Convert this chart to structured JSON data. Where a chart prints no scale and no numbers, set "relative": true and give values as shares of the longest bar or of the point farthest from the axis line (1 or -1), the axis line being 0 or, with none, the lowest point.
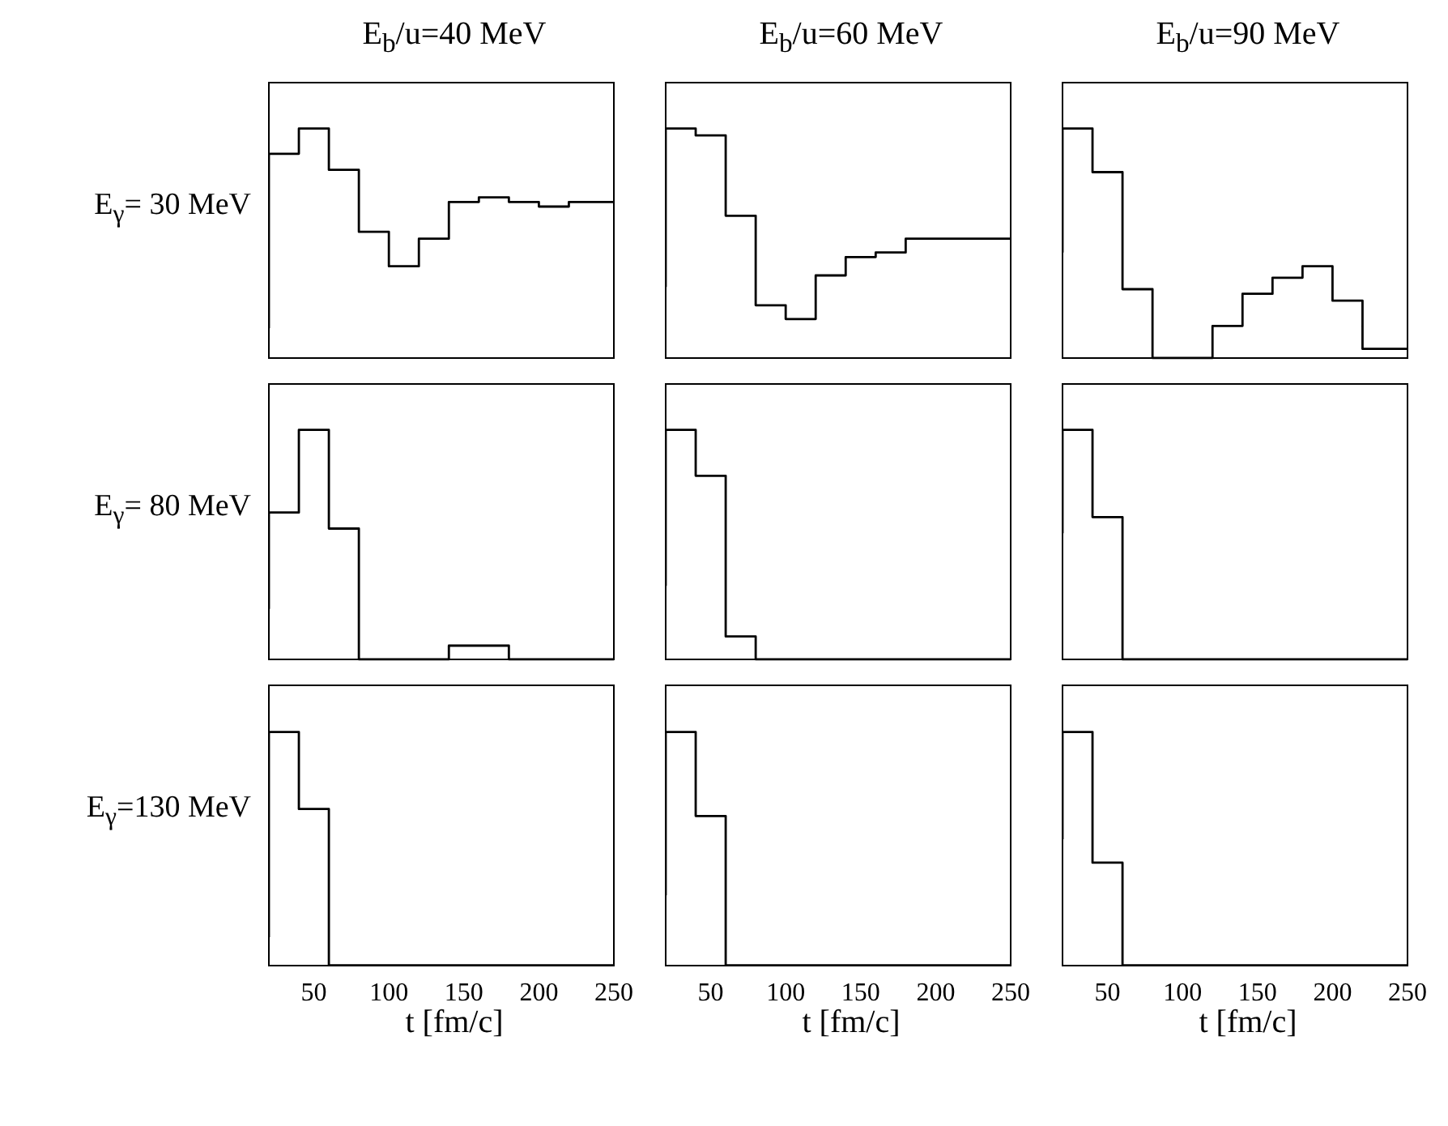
{
  "chart_data": [
    {
      "type": "step",
      "title": "E$_{b}$/u=40 MeV",
      "ylabel": "E$_{γ}$= 30 MeV",
      "relative": true,
      "color": "#000000",
      "tick_labels": false,
      "xlim": [
        20,
        250
      ],
      "xticks": [
        50,
        100,
        150,
        200,
        250
      ],
      "x": [
        20,
        40,
        60,
        80,
        100,
        120,
        140,
        160,
        180,
        200,
        220,
        240,
        250
      ],
      "values": [
        0.13,
        0.89,
        1,
        0.82,
        0.55,
        0.4,
        0.52,
        0.68,
        0.7,
        0.68,
        0.66,
        0.68,
        0.68
      ]
    },
    {
      "type": "step",
      "title": "E$_{b}$/u=60 MeV",
      "relative": true,
      "color": "#000000",
      "tick_labels": false,
      "xlim": [
        20,
        250
      ],
      "xticks": [
        50,
        100,
        150,
        200,
        250
      ],
      "x": [
        20,
        40,
        60,
        80,
        100,
        120,
        140,
        160,
        180,
        200,
        220,
        240,
        250
      ],
      "values": [
        0.31,
        1,
        0.97,
        0.62,
        0.23,
        0.17,
        0.36,
        0.44,
        0.46,
        0.52,
        0.52,
        0.52,
        0.52
      ]
    },
    {
      "type": "step",
      "title": "E$_{b}$/u=90 MeV",
      "relative": true,
      "color": "#000000",
      "tick_labels": false,
      "xlim": [
        20,
        250
      ],
      "xticks": [
        50,
        100,
        150,
        200,
        250
      ],
      "x": [
        20,
        40,
        60,
        80,
        100,
        120,
        140,
        160,
        180,
        200,
        220,
        240,
        250
      ],
      "values": [
        0.46,
        1,
        0.81,
        0.3,
        0,
        0,
        0.14,
        0.28,
        0.35,
        0.4,
        0.25,
        0.04,
        0.04
      ]
    },
    {
      "type": "step",
      "ylabel": "E$_{γ}$= 80 MeV",
      "relative": true,
      "color": "#000000",
      "tick_labels": false,
      "xlim": [
        20,
        250
      ],
      "xticks": [
        50,
        100,
        150,
        200,
        250
      ],
      "x": [
        20,
        40,
        60,
        80,
        100,
        120,
        140,
        160,
        180,
        200,
        220,
        240,
        250
      ],
      "values": [
        0.22,
        0.64,
        1,
        0.57,
        0,
        0,
        0,
        0.06,
        0.06,
        0,
        0,
        0,
        0
      ]
    },
    {
      "type": "step",
      "relative": true,
      "color": "#000000",
      "tick_labels": false,
      "xlim": [
        20,
        250
      ],
      "xticks": [
        50,
        100,
        150,
        200,
        250
      ],
      "x": [
        20,
        40,
        60,
        80,
        100,
        120,
        140,
        160,
        180,
        200,
        220,
        240,
        250
      ],
      "values": [
        0.32,
        1,
        0.8,
        0.1,
        0,
        0,
        0,
        0,
        0,
        0,
        0,
        0,
        0
      ]
    },
    {
      "type": "step",
      "relative": true,
      "color": "#000000",
      "tick_labels": false,
      "xlim": [
        20,
        250
      ],
      "xticks": [
        50,
        100,
        150,
        200,
        250
      ],
      "x": [
        20,
        40,
        60,
        80,
        100,
        120,
        140,
        160,
        180,
        200,
        220,
        240,
        250
      ],
      "values": [
        0.55,
        1,
        0.62,
        0,
        0,
        0,
        0,
        0,
        0,
        0,
        0,
        0,
        0
      ]
    },
    {
      "type": "step",
      "ylabel": "E$_{γ}$=130 MeV",
      "xlabel": "t [fm/c]",
      "relative": true,
      "color": "#000000",
      "tick_labels": "x",
      "xlim": [
        20,
        250
      ],
      "xticks": [
        50,
        100,
        150,
        200,
        250
      ],
      "x": [
        20,
        40,
        60,
        80,
        100,
        120,
        140,
        160,
        180,
        200,
        220,
        240,
        250
      ],
      "values": [
        0.12,
        1,
        0.67,
        0,
        0,
        0,
        0,
        0,
        0,
        0,
        0,
        0,
        0
      ]
    },
    {
      "type": "step",
      "xlabel": "t [fm/c]",
      "relative": true,
      "color": "#000000",
      "tick_labels": "x",
      "xlim": [
        20,
        250
      ],
      "xticks": [
        50,
        100,
        150,
        200,
        250
      ],
      "x": [
        20,
        40,
        60,
        80,
        100,
        120,
        140,
        160,
        180,
        200,
        220,
        240,
        250
      ],
      "values": [
        0.3,
        1,
        0.64,
        0,
        0,
        0,
        0,
        0,
        0,
        0,
        0,
        0,
        0
      ]
    },
    {
      "type": "step",
      "xlabel": "t [fm/c]",
      "relative": true,
      "color": "#000000",
      "tick_labels": "x",
      "xlim": [
        20,
        250
      ],
      "xticks": [
        50,
        100,
        150,
        200,
        250
      ],
      "x": [
        20,
        40,
        60,
        80,
        100,
        120,
        140,
        160,
        180,
        200,
        220,
        240,
        250
      ],
      "values": [
        0.54,
        1,
        0.44,
        0,
        0,
        0,
        0,
        0,
        0,
        0,
        0,
        0,
        0
      ]
    }
  ]
}
